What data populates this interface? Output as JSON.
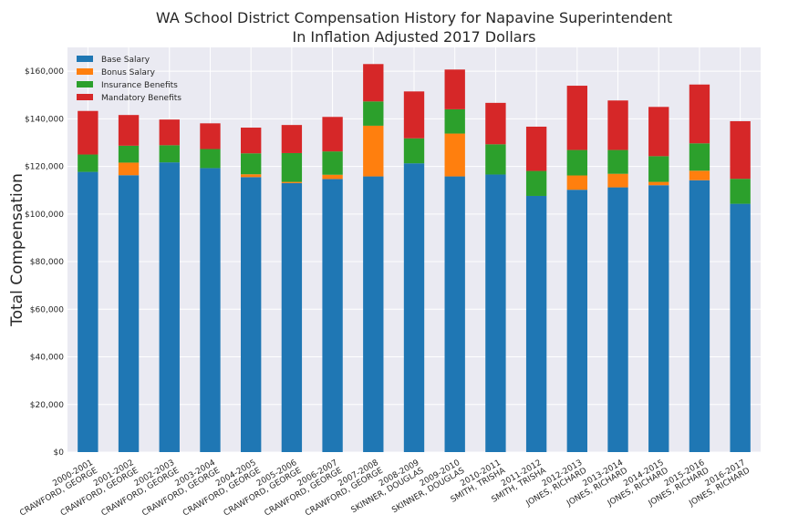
{
  "chart_data": {
    "type": "bar",
    "stacked": true,
    "title": "WA School District Compensation History for Napavine Superintendent",
    "subtitle": "In Inflation Adjusted 2017 Dollars",
    "ylabel": "Total Compensation",
    "xlabel": "",
    "ylim": [
      0,
      170000
    ],
    "yticks": [
      "$0",
      "$20,000",
      "$40,000",
      "$60,000",
      "$80,000",
      "$100,000",
      "$120,000",
      "$140,000",
      "$160,000"
    ],
    "grid": true,
    "legend_position": "top-left",
    "categories": [
      [
        "2000-2001",
        "CRAWFORD, GEORGE"
      ],
      [
        "2001-2002",
        "CRAWFORD, GEORGE"
      ],
      [
        "2002-2003",
        "CRAWFORD, GEORGE"
      ],
      [
        "2003-2004",
        "CRAWFORD, GEORGE"
      ],
      [
        "2004-2005",
        "CRAWFORD, GEORGE"
      ],
      [
        "2005-2006",
        "CRAWFORD, GEORGE"
      ],
      [
        "2006-2007",
        "CRAWFORD, GEORGE"
      ],
      [
        "2007-2008",
        "CRAWFORD, GEORGE"
      ],
      [
        "2008-2009",
        "SKINNER, DOUGLAS"
      ],
      [
        "2009-2010",
        "SKINNER, DOUGLAS"
      ],
      [
        "2010-2011",
        "SMITH, TRISHA"
      ],
      [
        "2011-2012",
        "SMITH, TRISHA"
      ],
      [
        "2012-2013",
        "JONES, RICHARD"
      ],
      [
        "2013-2014",
        "JONES, RICHARD"
      ],
      [
        "2014-2015",
        "JONES, RICHARD"
      ],
      [
        "2015-2016",
        "JONES, RICHARD"
      ],
      [
        "2016-2017",
        "JONES, RICHARD"
      ]
    ],
    "series": [
      {
        "name": "Base Salary",
        "color": "#1f77b4",
        "values": [
          117700,
          116300,
          121700,
          119300,
          115500,
          113000,
          114700,
          115800,
          121300,
          115800,
          116600,
          107600,
          110200,
          111200,
          112100,
          114200,
          104300
        ]
      },
      {
        "name": "Bonus Salary",
        "color": "#ff7f0e",
        "values": [
          0,
          5300,
          0,
          0,
          1200,
          500,
          1800,
          21300,
          0,
          18000,
          0,
          0,
          6000,
          5700,
          1400,
          4000,
          0
        ]
      },
      {
        "name": "Insurance Benefits",
        "color": "#2ca02c",
        "values": [
          7300,
          7100,
          7200,
          8000,
          8800,
          12100,
          9800,
          10200,
          10500,
          10200,
          12700,
          10500,
          10700,
          10000,
          10800,
          11500,
          10500
        ]
      },
      {
        "name": "Mandatory Benefits",
        "color": "#d62728",
        "values": [
          18300,
          12900,
          10800,
          10800,
          10800,
          11800,
          14500,
          15700,
          19700,
          16700,
          17400,
          18600,
          27000,
          20800,
          20700,
          24700,
          24200
        ]
      }
    ]
  }
}
